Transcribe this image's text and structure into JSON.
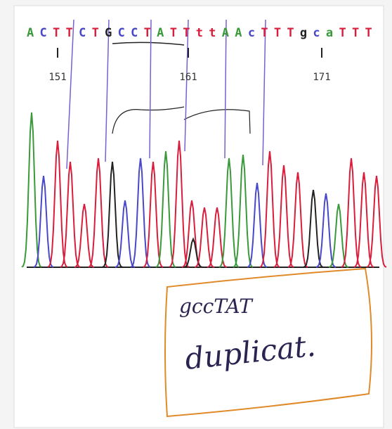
{
  "sequence": [
    "A",
    "C",
    "T",
    "T",
    "C",
    "T",
    "G",
    "C",
    "C",
    "T",
    "A",
    "T",
    "T",
    "t",
    "t",
    "A",
    "A",
    "c",
    "T",
    "T",
    "T",
    "g",
    "c",
    "a",
    "T",
    "T",
    "T"
  ],
  "positions": [
    "151",
    "161",
    "171"
  ],
  "note": {
    "line1": "gccTAT",
    "line2": "duplicat."
  }
}
